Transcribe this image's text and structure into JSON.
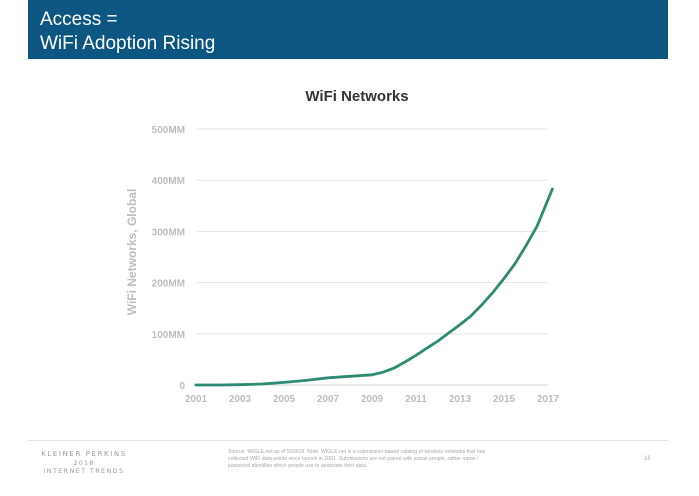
{
  "header": {
    "title_line1": "Access =",
    "title_line2": "WiFi Adoption Rising",
    "background_color": "#0d5682"
  },
  "chart_data": {
    "type": "line",
    "title": "WiFi Networks",
    "xlabel": "",
    "ylabel": "WiFi Networks, Global",
    "xlim": [
      2001,
      2017
    ],
    "ylim": [
      0,
      500
    ],
    "x_ticks": [
      "2001",
      "2003",
      "2005",
      "2007",
      "2009",
      "2011",
      "2013",
      "2015",
      "2017"
    ],
    "y_ticks": [
      {
        "value": 0,
        "label": "0"
      },
      {
        "value": 100,
        "label": "100MM"
      },
      {
        "value": 200,
        "label": "200MM"
      },
      {
        "value": 300,
        "label": "300MM"
      },
      {
        "value": 400,
        "label": "400MM"
      },
      {
        "value": 500,
        "label": "500MM"
      }
    ],
    "grid": true,
    "legend": "none",
    "series": [
      {
        "color": "#2e8b73",
        "x": [
          2001,
          2002,
          2003,
          2004,
          2005,
          2006,
          2007,
          2008,
          2009,
          2009.5,
          2010,
          2010.5,
          2011,
          2011.5,
          2012,
          2012.5,
          2013,
          2013.5,
          2014,
          2014.5,
          2015,
          2015.5,
          2016,
          2016.5,
          2017,
          2017.2
        ],
        "y": [
          0,
          0,
          0.5,
          2,
          5,
          9,
          14,
          17,
          20,
          25,
          33,
          45,
          58,
          72,
          86,
          102,
          118,
          135,
          157,
          181,
          208,
          237,
          272,
          310,
          362,
          383
        ]
      }
    ]
  },
  "footer": {
    "logo_line1": "KLEINER PERKINS",
    "logo_line2": "2018",
    "logo_line3": "INTERNET TRENDS",
    "source": "Source: WIGLE.net as of 5/29/18. Note: WIGLE.net is a submission-based catalog of wireless networks that has collected WiFi data points since launch in 2001. Submissions are not paired with actual people; rather name / password identifies which people use to associate their data.",
    "page_number": "16"
  }
}
